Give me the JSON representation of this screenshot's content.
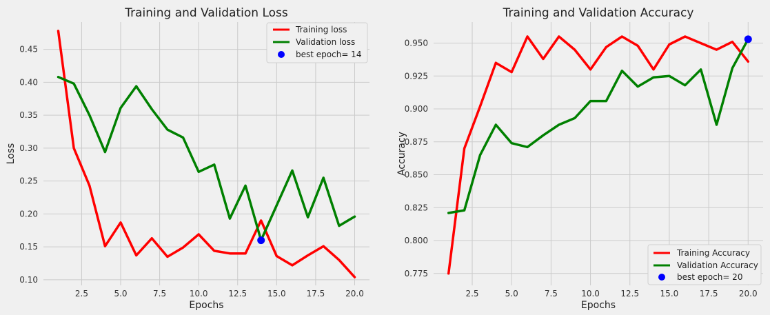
{
  "chart_data": [
    {
      "type": "line",
      "title": "Training and Validation Loss",
      "xlabel": "Epochs",
      "ylabel": "Loss",
      "xlim": [
        0.05,
        20.95
      ],
      "ylim": [
        0.0915,
        0.4915
      ],
      "x_ticks": [
        2.5,
        5.0,
        7.5,
        10.0,
        12.5,
        15.0,
        17.5,
        20.0
      ],
      "x_tick_labels": [
        "2.5",
        "5.0",
        "7.5",
        "10.0",
        "12.5",
        "15.0",
        "17.5",
        "20.0"
      ],
      "y_ticks": [
        0.1,
        0.15,
        0.2,
        0.25,
        0.3,
        0.35,
        0.4,
        0.45
      ],
      "y_tick_labels": [
        "0.10",
        "0.15",
        "0.20",
        "0.25",
        "0.30",
        "0.35",
        "0.40",
        "0.45"
      ],
      "grid": true,
      "legend_position": "top-right",
      "x": [
        1,
        2,
        3,
        4,
        5,
        6,
        7,
        8,
        9,
        10,
        11,
        12,
        13,
        14,
        15,
        16,
        17,
        18,
        19,
        20
      ],
      "series": [
        {
          "name": "Training loss",
          "color": "#ff0000",
          "values": [
            0.478,
            0.3,
            0.243,
            0.151,
            0.187,
            0.137,
            0.163,
            0.135,
            0.149,
            0.169,
            0.144,
            0.14,
            0.14,
            0.19,
            0.136,
            0.122,
            0.137,
            0.151,
            0.13,
            0.104
          ]
        },
        {
          "name": "Validation loss",
          "color": "#008000",
          "values": [
            0.408,
            0.398,
            0.35,
            0.294,
            0.361,
            0.394,
            0.359,
            0.328,
            0.316,
            0.264,
            0.275,
            0.193,
            0.243,
            0.16,
            0.213,
            0.266,
            0.195,
            0.255,
            0.182,
            0.196
          ]
        }
      ],
      "best_point": {
        "label": "best epoch= 14",
        "x": 14,
        "y": 0.16,
        "color": "#0000ff"
      }
    },
    {
      "type": "line",
      "title": "Training and Validation Accuracy",
      "xlabel": "Epochs",
      "ylabel": "Accuracy",
      "xlim": [
        0.05,
        20.95
      ],
      "ylim": [
        0.766,
        0.966
      ],
      "x_ticks": [
        2.5,
        5.0,
        7.5,
        10.0,
        12.5,
        15.0,
        17.5,
        20.0
      ],
      "x_tick_labels": [
        "2.5",
        "5.0",
        "7.5",
        "10.0",
        "12.5",
        "15.0",
        "17.5",
        "20.0"
      ],
      "y_ticks": [
        0.775,
        0.8,
        0.825,
        0.85,
        0.875,
        0.9,
        0.925,
        0.95
      ],
      "y_tick_labels": [
        "0.775",
        "0.800",
        "0.825",
        "0.850",
        "0.875",
        "0.900",
        "0.925",
        "0.950"
      ],
      "grid": true,
      "legend_position": "bottom-right",
      "x": [
        1,
        2,
        3,
        4,
        5,
        6,
        7,
        8,
        9,
        10,
        11,
        12,
        13,
        14,
        15,
        16,
        17,
        18,
        19,
        20
      ],
      "series": [
        {
          "name": "Training Accuracy",
          "color": "#ff0000",
          "values": [
            0.775,
            0.87,
            0.902,
            0.935,
            0.928,
            0.955,
            0.938,
            0.955,
            0.945,
            0.93,
            0.947,
            0.955,
            0.948,
            0.93,
            0.949,
            0.955,
            0.95,
            0.945,
            0.951,
            0.936
          ]
        },
        {
          "name": "Validation Accuracy",
          "color": "#008000",
          "values": [
            0.821,
            0.823,
            0.865,
            0.888,
            0.874,
            0.871,
            0.88,
            0.888,
            0.893,
            0.906,
            0.906,
            0.929,
            0.917,
            0.924,
            0.925,
            0.918,
            0.93,
            0.888,
            0.931,
            0.953
          ]
        }
      ],
      "best_point": {
        "label": "best epoch= 20",
        "x": 20,
        "y": 0.953,
        "color": "#0000ff"
      }
    }
  ]
}
